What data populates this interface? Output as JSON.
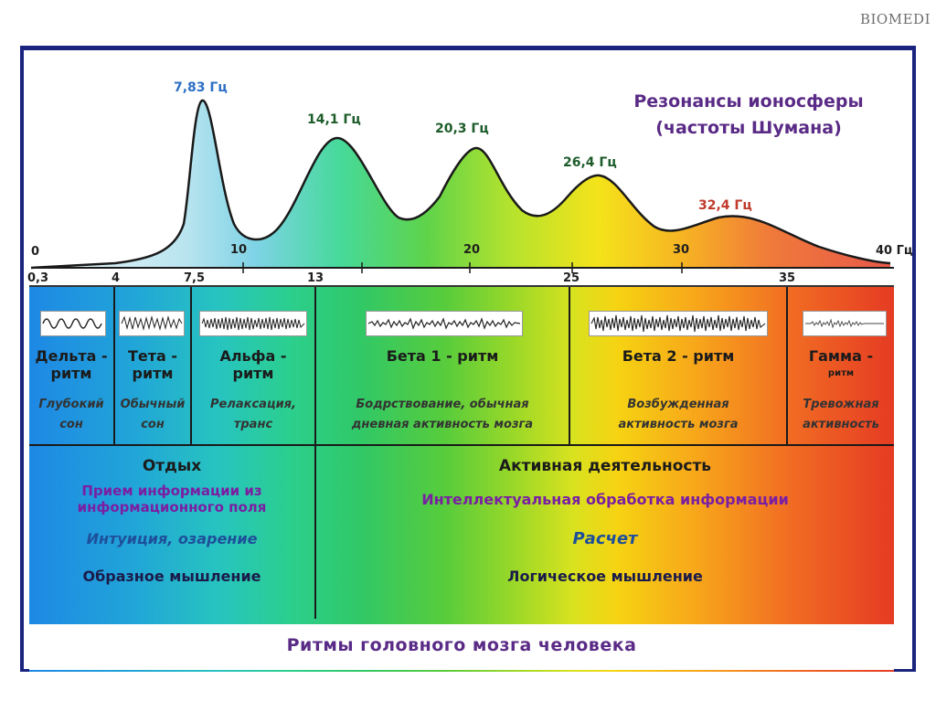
{
  "logo": "BIOMEDI",
  "title_line1": "Резонансы ионосферы",
  "title_line2": "(частоты Шумана)",
  "peaks": [
    {
      "label": "7,83 Гц",
      "freq": 7.83,
      "color": "#2d6fc4"
    },
    {
      "label": "14,1 Гц",
      "freq": 14.1,
      "color": "#1d5c2a"
    },
    {
      "label": "20,3 Гц",
      "freq": 20.3,
      "color": "#1d5c2a"
    },
    {
      "label": "26,4 Гц",
      "freq": 26.4,
      "color": "#1d5c2a"
    },
    {
      "label": "32,4 Гц",
      "freq": 32.4,
      "color": "#c0392b"
    }
  ],
  "top_axis": [
    "0",
    "10",
    "20",
    "30",
    "40 Гц"
  ],
  "bottom_axis": [
    "0,3",
    "4",
    "7,5",
    "13",
    "25",
    "35"
  ],
  "rhythms": [
    {
      "name1": "Дельта -",
      "name2": "ритм",
      "desc1": "Глубокий",
      "desc2": "сон"
    },
    {
      "name1": "Тета -",
      "name2": "ритм",
      "desc1": "Обычный",
      "desc2": "сон"
    },
    {
      "name1": "Альфа -",
      "name2": "ритм",
      "desc1": "Релаксация,",
      "desc2": "транс"
    },
    {
      "name1": "Бета 1 - ритм",
      "name2": "",
      "desc1": "Бодрствование, обычная",
      "desc2": "дневная активность мозга"
    },
    {
      "name1": "Бета 2 - ритм",
      "name2": "",
      "desc1": "Возбужденная",
      "desc2": "активность мозга"
    },
    {
      "name1": "Гамма -",
      "name2": "ритм",
      "desc1": "Тревожная",
      "desc2": "активность"
    }
  ],
  "rest": {
    "heading": "Отдых",
    "line1": "Прием информации из",
    "line2": "информационного поля",
    "line3": "Интуиция, озарение",
    "line4": "Образное мышление"
  },
  "active": {
    "heading": "Активная деятельность",
    "line1": "Интеллектуальная обработка информации",
    "line2": "Расчет",
    "line3": "Логическое мышление"
  },
  "bottom_title": "Ритмы головного мозга человека",
  "colors": {
    "purple": "#5a2b86",
    "frame": "#1a237e",
    "blue_text": "#1e4f9a"
  }
}
